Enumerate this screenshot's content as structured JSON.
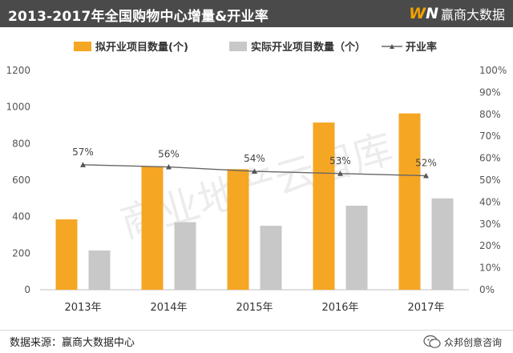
{
  "header": {
    "title": "2013-2017年全国购物中心增量&开业率",
    "brand_mark_left": "W",
    "brand_mark_right": "N",
    "brand_name": "赢商大数据"
  },
  "footer": {
    "source": "数据来源：赢商大数据中心",
    "account": "众邦创意咨询"
  },
  "watermark": "商业地产云智库",
  "colors": {
    "planned": "#f5a623",
    "actual": "#c8c8c8",
    "line": "#666666",
    "header_bg": "#4a4a4a"
  },
  "chart_data": {
    "type": "bar",
    "categories": [
      "2013年",
      "2014年",
      "2015年",
      "2016年",
      "2017年"
    ],
    "series": [
      {
        "name": "拟开业项目数量(个)",
        "values": [
          385,
          675,
          660,
          915,
          965
        ],
        "axis": "left"
      },
      {
        "name": "实际开业项目数量（个）",
        "values": [
          215,
          370,
          350,
          460,
          500
        ],
        "axis": "left"
      }
    ],
    "line_series": {
      "name": "开业率",
      "values": [
        57,
        56,
        54,
        53,
        52
      ],
      "labels": [
        "57%",
        "56%",
        "54%",
        "53%",
        "52%"
      ],
      "axis": "right"
    },
    "ylim_left": [
      0,
      1200
    ],
    "yticks_left": [
      "0",
      "200",
      "400",
      "600",
      "800",
      "1000",
      "1200"
    ],
    "ylim_right": [
      0,
      100
    ],
    "yticks_right": [
      "0%",
      "10%",
      "20%",
      "30%",
      "40%",
      "50%",
      "60%",
      "70%",
      "80%",
      "90%",
      "100%"
    ],
    "legend_position": "top-center"
  }
}
